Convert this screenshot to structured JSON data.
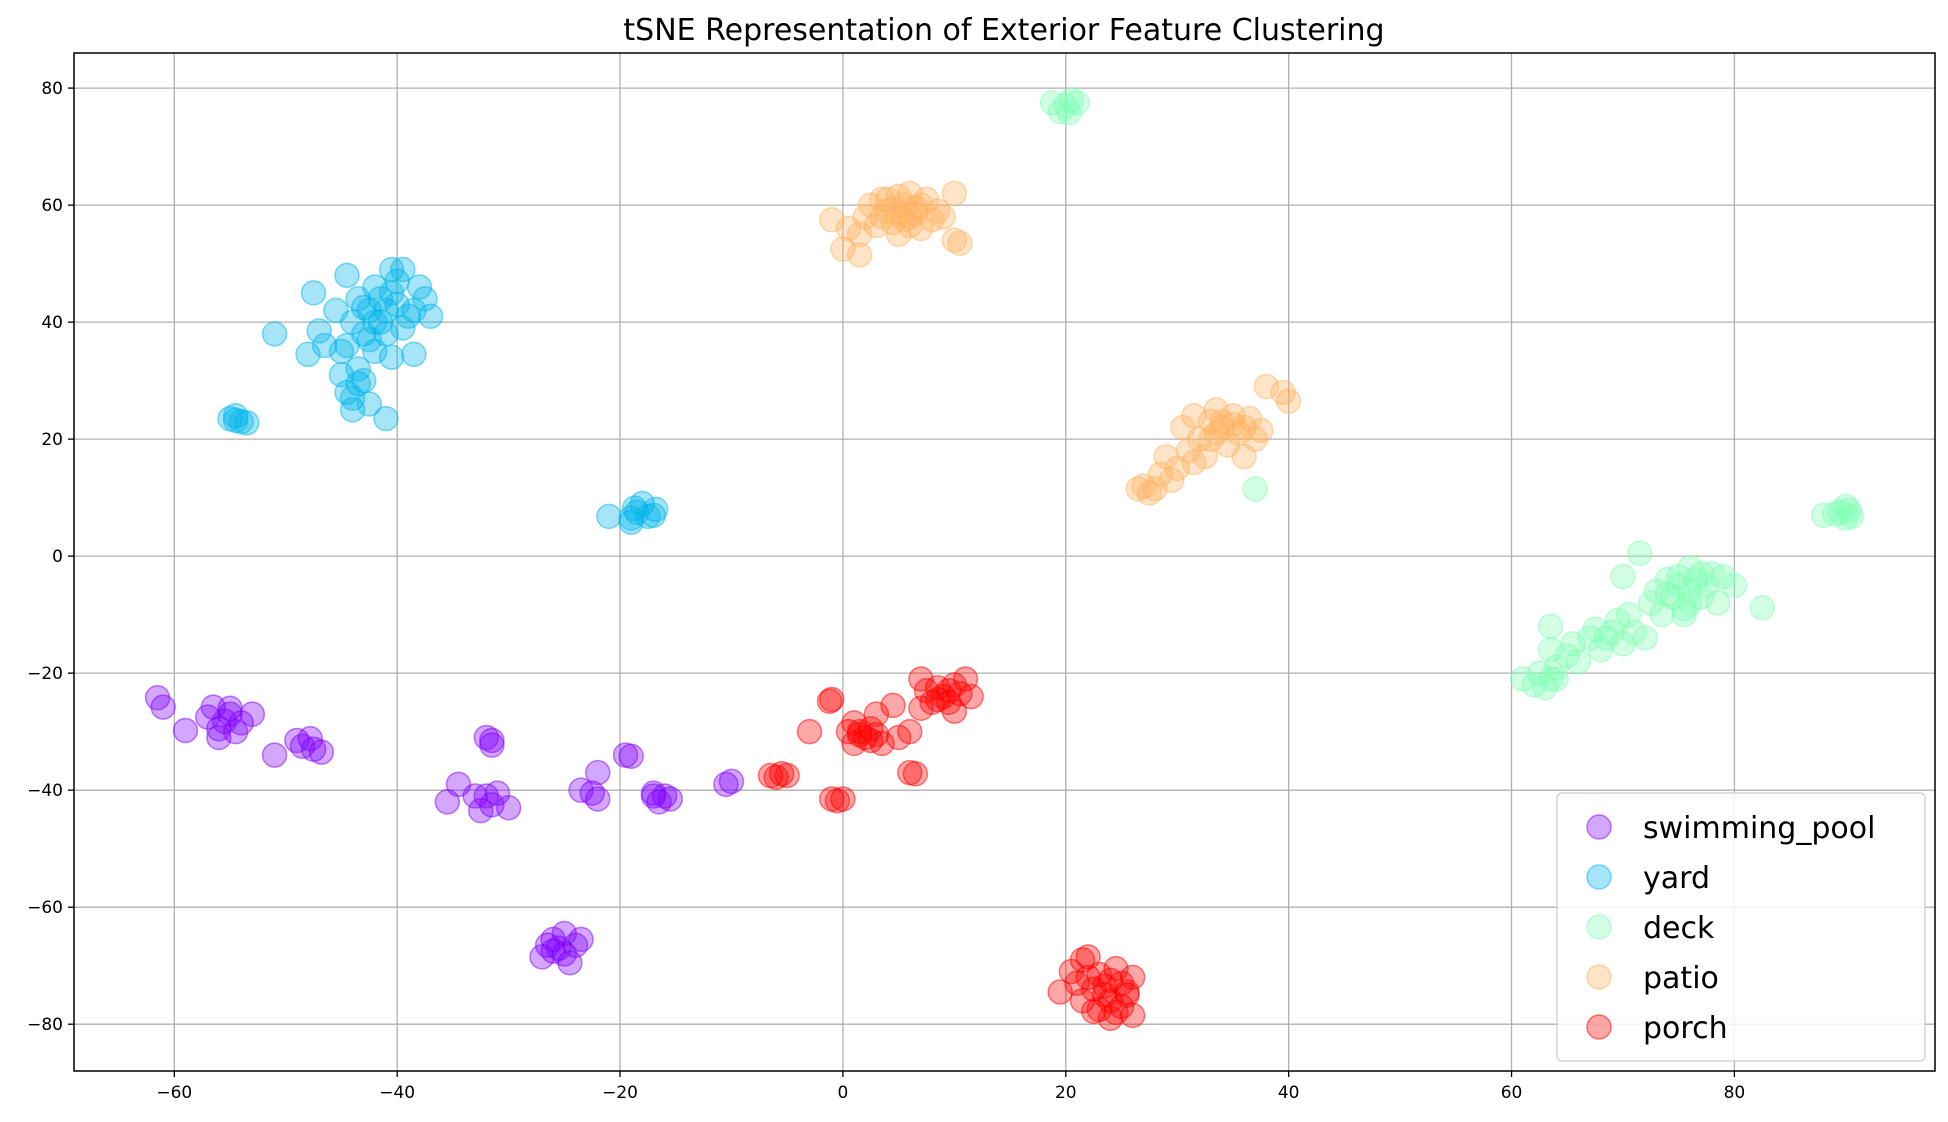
{
  "chart_data": {
    "type": "scatter",
    "title": "tSNE Representation of Exterior Feature Clustering",
    "xlabel": "",
    "ylabel": "",
    "xlim": [
      -69,
      98
    ],
    "ylim": [
      -88,
      86
    ],
    "xticks": [
      -60,
      -40,
      -20,
      0,
      20,
      40,
      60,
      80
    ],
    "yticks": [
      -80,
      -60,
      -40,
      -20,
      0,
      20,
      40,
      60,
      80
    ],
    "xtick_labels": [
      "−60",
      "−40",
      "−20",
      "0",
      "20",
      "40",
      "60",
      "80"
    ],
    "ytick_labels": [
      "−80",
      "−60",
      "−40",
      "−20",
      "0",
      "20",
      "40",
      "60",
      "80"
    ],
    "grid": true,
    "legend_position": "lower-right",
    "marker_opacity": 0.35,
    "series": [
      {
        "name": "swimming_pool",
        "color": "#8000ff",
        "points": [
          [
            -61.5,
            -24.2
          ],
          [
            -61,
            -25.8
          ],
          [
            -59,
            -29.8
          ],
          [
            -57,
            -27.5
          ],
          [
            -56.5,
            -25.8
          ],
          [
            -56,
            -29.5
          ],
          [
            -55.5,
            -28.2
          ],
          [
            -55,
            -27
          ],
          [
            -54.5,
            -30
          ],
          [
            -54,
            -28.5
          ],
          [
            -53,
            -27
          ],
          [
            -56,
            -31
          ],
          [
            -55,
            -26
          ],
          [
            -51,
            -34
          ],
          [
            -49,
            -31.5
          ],
          [
            -48.5,
            -32.5
          ],
          [
            -47.8,
            -31.2
          ],
          [
            -47.5,
            -33
          ],
          [
            -46.8,
            -33.5
          ],
          [
            -35.5,
            -42
          ],
          [
            -34.5,
            -39
          ],
          [
            -33,
            -41
          ],
          [
            -32.5,
            -43.5
          ],
          [
            -32,
            -41
          ],
          [
            -31.5,
            -42.5
          ],
          [
            -31,
            -40.5
          ],
          [
            -30,
            -43
          ],
          [
            -32,
            -31
          ],
          [
            -31.5,
            -31.5
          ],
          [
            -31.5,
            -32.3
          ],
          [
            -23.5,
            -40
          ],
          [
            -22.5,
            -40.5
          ],
          [
            -22,
            -37
          ],
          [
            -22,
            -41.5
          ],
          [
            -19.5,
            -34
          ],
          [
            -19,
            -34.2
          ],
          [
            -17,
            -41
          ],
          [
            -16.5,
            -42
          ],
          [
            -16,
            -41
          ],
          [
            -15.5,
            -41.5
          ],
          [
            -17,
            -40.5
          ],
          [
            -10.5,
            -39
          ],
          [
            -10,
            -38.5
          ],
          [
            -27,
            -68.5
          ],
          [
            -26.5,
            -66.5
          ],
          [
            -26,
            -65.5
          ],
          [
            -25.5,
            -67
          ],
          [
            -25,
            -68
          ],
          [
            -25,
            -64.5
          ],
          [
            -24.5,
            -69.5
          ],
          [
            -24,
            -66.5
          ],
          [
            -23.5,
            -65.5
          ],
          [
            -26,
            -67.5
          ]
        ]
      },
      {
        "name": "yard",
        "color": "#00b5eb",
        "points": [
          [
            -55,
            23.5
          ],
          [
            -54.5,
            24
          ],
          [
            -54,
            23
          ],
          [
            -53.5,
            22.8
          ],
          [
            -54.5,
            23.2
          ],
          [
            -51,
            38
          ],
          [
            -48,
            34.5
          ],
          [
            -47.5,
            45
          ],
          [
            -47,
            38.5
          ],
          [
            -46.5,
            36
          ],
          [
            -45.5,
            42
          ],
          [
            -45,
            31
          ],
          [
            -45,
            35
          ],
          [
            -44.5,
            28
          ],
          [
            -44.5,
            48
          ],
          [
            -44,
            25
          ],
          [
            -44,
            40
          ],
          [
            -43.5,
            29.5
          ],
          [
            -43.5,
            44
          ],
          [
            -43,
            30
          ],
          [
            -43,
            38
          ],
          [
            -42.5,
            26
          ],
          [
            -42.5,
            42
          ],
          [
            -42,
            35
          ],
          [
            -42,
            46
          ],
          [
            -41.5,
            40
          ],
          [
            -41.5,
            44
          ],
          [
            -41,
            23.5
          ],
          [
            -41,
            38
          ],
          [
            -40.5,
            49
          ],
          [
            -40.5,
            34
          ],
          [
            -40,
            43
          ],
          [
            -40,
            47
          ],
          [
            -39.5,
            49
          ],
          [
            -39.5,
            39
          ],
          [
            -39,
            41
          ],
          [
            -38.5,
            34.5
          ],
          [
            -38.5,
            42
          ],
          [
            -38,
            46
          ],
          [
            -37.5,
            44
          ],
          [
            -37,
            41
          ],
          [
            -43.5,
            32
          ],
          [
            -44,
            27
          ],
          [
            -42,
            40
          ],
          [
            -41,
            42
          ],
          [
            -40.5,
            45
          ],
          [
            -42.5,
            37
          ],
          [
            -43,
            42.5
          ],
          [
            -44.5,
            36
          ],
          [
            -21,
            6.8
          ],
          [
            -19,
            5.8
          ],
          [
            -18.7,
            8.2
          ],
          [
            -18.5,
            7.5
          ],
          [
            -18,
            9
          ],
          [
            -17.5,
            6.8
          ],
          [
            -17,
            7
          ],
          [
            -16.8,
            8
          ],
          [
            -19,
            6.5
          ]
        ]
      },
      {
        "name": "deck",
        "color": "#80ffb4",
        "points": [
          [
            18.8,
            77.5
          ],
          [
            19.5,
            76
          ],
          [
            20,
            77
          ],
          [
            20.5,
            78
          ],
          [
            20.3,
            75.8
          ],
          [
            21,
            77.5
          ],
          [
            37,
            11.5
          ],
          [
            61,
            -21
          ],
          [
            62,
            -22
          ],
          [
            62.5,
            -20
          ],
          [
            63,
            -22.5
          ],
          [
            63.5,
            -21
          ],
          [
            63.5,
            -12
          ],
          [
            63.5,
            -16
          ],
          [
            64,
            -19
          ],
          [
            65,
            -17
          ],
          [
            65.5,
            -15
          ],
          [
            66,
            -18
          ],
          [
            67,
            -14
          ],
          [
            67.5,
            -12.5
          ],
          [
            68,
            -16
          ],
          [
            68.5,
            -14
          ],
          [
            69,
            -13
          ],
          [
            69.5,
            -11
          ],
          [
            70,
            -15
          ],
          [
            70,
            -3.5
          ],
          [
            70.5,
            -10
          ],
          [
            71,
            -13
          ],
          [
            71.5,
            0.5
          ],
          [
            72,
            -14
          ],
          [
            72.5,
            -8
          ],
          [
            73,
            -6
          ],
          [
            73.5,
            -10
          ],
          [
            74,
            -4
          ],
          [
            74.5,
            -7
          ],
          [
            75,
            -5
          ],
          [
            75.5,
            -9
          ],
          [
            76,
            -2
          ],
          [
            76,
            -6
          ],
          [
            76.5,
            -4
          ],
          [
            77,
            -7
          ],
          [
            77.5,
            -5
          ],
          [
            78,
            -3
          ],
          [
            78.5,
            -8
          ],
          [
            79,
            -3.5
          ],
          [
            80,
            -5
          ],
          [
            82.5,
            -8.8
          ],
          [
            74,
            -6.5
          ],
          [
            75,
            -3.5
          ],
          [
            76,
            -8
          ],
          [
            75.5,
            -10
          ],
          [
            77,
            -3
          ],
          [
            64,
            -21
          ],
          [
            88,
            7
          ],
          [
            89.5,
            7.5
          ],
          [
            90,
            6.5
          ],
          [
            90,
            8.5
          ],
          [
            90.5,
            6.8
          ],
          [
            89,
            7.2
          ],
          [
            90.3,
            7.8
          ]
        ]
      },
      {
        "name": "patio",
        "color": "#ffb360",
        "points": [
          [
            -1,
            57.5
          ],
          [
            0,
            52.5
          ],
          [
            0.5,
            56
          ],
          [
            1.5,
            55
          ],
          [
            1.5,
            51.5
          ],
          [
            2,
            58
          ],
          [
            2.5,
            60
          ],
          [
            3,
            56.5
          ],
          [
            3.5,
            61
          ],
          [
            4,
            59
          ],
          [
            4.5,
            57
          ],
          [
            5,
            61.5
          ],
          [
            5,
            55
          ],
          [
            5.5,
            60
          ],
          [
            6,
            58
          ],
          [
            6,
            62
          ],
          [
            6.5,
            59.5
          ],
          [
            7,
            56
          ],
          [
            7.5,
            61
          ],
          [
            8,
            57.5
          ],
          [
            8.5,
            59
          ],
          [
            9,
            58
          ],
          [
            10,
            54
          ],
          [
            10,
            62
          ],
          [
            10.5,
            53.5
          ],
          [
            3.5,
            58
          ],
          [
            4.5,
            59.5
          ],
          [
            5.5,
            57.5
          ],
          [
            6.5,
            58.5
          ],
          [
            4,
            61
          ],
          [
            7,
            60
          ],
          [
            5,
            58.5
          ],
          [
            6,
            56.5
          ],
          [
            26.5,
            11.5
          ],
          [
            27,
            12
          ],
          [
            27.5,
            10.8
          ],
          [
            28,
            11.5
          ],
          [
            28.5,
            14
          ],
          [
            29,
            17
          ],
          [
            29.5,
            13
          ],
          [
            30,
            15
          ],
          [
            30.5,
            22
          ],
          [
            31,
            18
          ],
          [
            31.5,
            16
          ],
          [
            31.5,
            24
          ],
          [
            32,
            20
          ],
          [
            32.5,
            17
          ],
          [
            33,
            23
          ],
          [
            33,
            20
          ],
          [
            33.5,
            25
          ],
          [
            34,
            22
          ],
          [
            34.5,
            19
          ],
          [
            35,
            24
          ],
          [
            35.5,
            21
          ],
          [
            36,
            17
          ],
          [
            36.5,
            23.5
          ],
          [
            37,
            20
          ],
          [
            37.5,
            21.5
          ],
          [
            38,
            29
          ],
          [
            39.5,
            28
          ],
          [
            40,
            26.5
          ],
          [
            34,
            23
          ],
          [
            35,
            22.5
          ],
          [
            33.5,
            21
          ],
          [
            36,
            22
          ]
        ]
      },
      {
        "name": "porch",
        "color": "#ff0000",
        "points": [
          [
            -6.5,
            -37.5
          ],
          [
            -6,
            -37.8
          ],
          [
            -5.5,
            -37.2
          ],
          [
            -5,
            -37.5
          ],
          [
            -3,
            -30
          ],
          [
            -1.2,
            -24.8
          ],
          [
            -1,
            -24.5
          ],
          [
            -1,
            -41.5
          ],
          [
            -0.5,
            -41.8
          ],
          [
            0,
            -41.5
          ],
          [
            0.5,
            -30
          ],
          [
            1,
            -28.5
          ],
          [
            1,
            -32
          ],
          [
            1.5,
            -30.5
          ],
          [
            2,
            -31
          ],
          [
            2.5,
            -29.5
          ],
          [
            3,
            -27
          ],
          [
            3,
            -30.5
          ],
          [
            3.5,
            -32
          ],
          [
            4.5,
            -25.5
          ],
          [
            5,
            -31
          ],
          [
            6,
            -30
          ],
          [
            6,
            -37
          ],
          [
            6.5,
            -37.2
          ],
          [
            7,
            -21
          ],
          [
            7,
            -26
          ],
          [
            7.5,
            -23
          ],
          [
            8,
            -25
          ],
          [
            8.5,
            -22.5
          ],
          [
            9,
            -24
          ],
          [
            9.5,
            -23
          ],
          [
            10,
            -26.5
          ],
          [
            10,
            -22
          ],
          [
            10.5,
            -23.5
          ],
          [
            11,
            -21
          ],
          [
            11.5,
            -24
          ],
          [
            1.5,
            -30
          ],
          [
            2.5,
            -31.5
          ],
          [
            8.5,
            -24.5
          ],
          [
            9.5,
            -25
          ],
          [
            19.5,
            -74.5
          ],
          [
            20.5,
            -71
          ],
          [
            21,
            -73
          ],
          [
            21.5,
            -69
          ],
          [
            21.5,
            -76
          ],
          [
            22,
            -72
          ],
          [
            22.5,
            -74
          ],
          [
            23,
            -77.5
          ],
          [
            23,
            -71.5
          ],
          [
            23.5,
            -73.5
          ],
          [
            24,
            -76
          ],
          [
            24,
            -79
          ],
          [
            24.5,
            -70.5
          ],
          [
            25,
            -73
          ],
          [
            25,
            -77
          ],
          [
            25.5,
            -75
          ],
          [
            26,
            -78.5
          ],
          [
            26,
            -72
          ],
          [
            22,
            -68.5
          ],
          [
            23.5,
            -75
          ],
          [
            24.5,
            -78
          ],
          [
            25.5,
            -74.5
          ],
          [
            22.5,
            -77.8
          ],
          [
            24,
            -72.5
          ]
        ]
      }
    ]
  }
}
